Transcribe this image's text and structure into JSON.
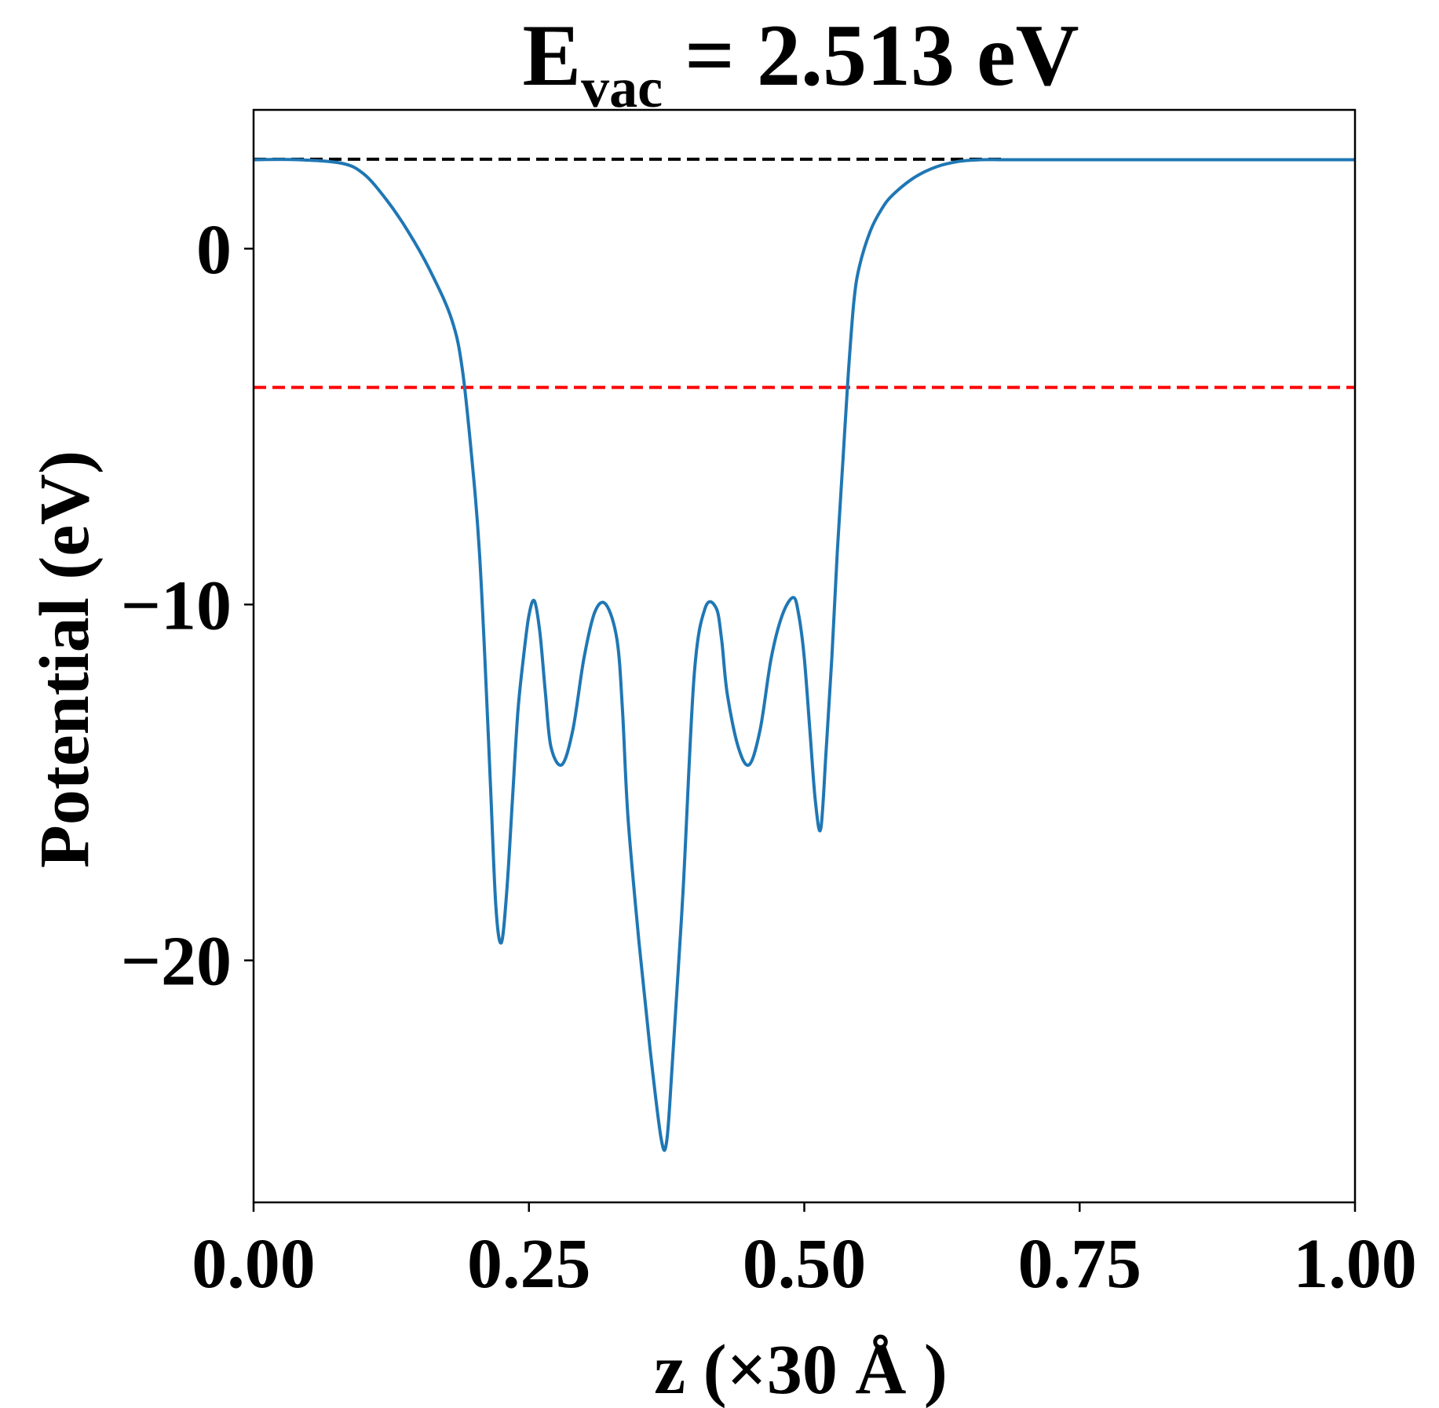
{
  "chart_data": {
    "type": "line",
    "title": {
      "main": "E",
      "subscript": "vac",
      "rest": " = 2.513 eV"
    },
    "xlabel": "z (×30 Å )",
    "ylabel": "Potential (eV)",
    "xlim": [
      0.0,
      1.0
    ],
    "ylim": [
      -26.8,
      3.9
    ],
    "xticks": [
      0.0,
      0.25,
      0.5,
      0.75,
      1.0
    ],
    "xtick_labels": [
      "0.00",
      "0.25",
      "0.50",
      "0.75",
      "1.00"
    ],
    "yticks": [
      0,
      -10,
      -20
    ],
    "ytick_labels": [
      "0",
      "−10",
      "−20"
    ],
    "grid": false,
    "hlines": [
      {
        "y": 2.513,
        "color": "#000000",
        "style": "dashed",
        "x_range": [
          0.0,
          0.68
        ]
      },
      {
        "y": -3.9,
        "color": "#ff0000",
        "style": "dashed",
        "x_range": [
          0.0,
          1.0
        ]
      }
    ],
    "series": [
      {
        "color": "#1f77b4",
        "x": [
          0.0,
          0.04,
          0.08,
          0.1,
          0.12,
          0.14,
          0.16,
          0.18,
          0.19,
          0.2,
          0.205,
          0.21,
          0.215,
          0.22,
          0.225,
          0.23,
          0.235,
          0.24,
          0.245,
          0.25,
          0.255,
          0.26,
          0.265,
          0.27,
          0.28,
          0.29,
          0.3,
          0.31,
          0.32,
          0.33,
          0.335,
          0.34,
          0.35,
          0.36,
          0.37,
          0.375,
          0.38,
          0.39,
          0.4,
          0.41,
          0.42,
          0.425,
          0.43,
          0.44,
          0.45,
          0.46,
          0.47,
          0.48,
          0.49,
          0.495,
          0.5,
          0.505,
          0.51,
          0.515,
          0.52,
          0.525,
          0.53,
          0.535,
          0.54,
          0.545,
          0.55,
          0.56,
          0.57,
          0.58,
          0.6,
          0.62,
          0.64,
          0.66,
          0.68,
          0.7,
          0.75,
          0.8,
          0.85,
          0.9,
          0.95,
          1.0
        ],
        "y": [
          2.5,
          2.5,
          2.4,
          2.1,
          1.4,
          0.5,
          -0.6,
          -2.0,
          -3.5,
          -6.5,
          -8.5,
          -11.5,
          -15.0,
          -18.5,
          -19.5,
          -18.0,
          -15.5,
          -13.0,
          -11.5,
          -10.3,
          -9.9,
          -10.8,
          -12.5,
          -14.0,
          -14.5,
          -13.5,
          -11.5,
          -10.2,
          -10.0,
          -11.0,
          -13.0,
          -16.0,
          -19.5,
          -22.5,
          -25.0,
          -25.1,
          -23.0,
          -18.0,
          -12.0,
          -10.1,
          -10.1,
          -11.0,
          -12.5,
          -14.0,
          -14.5,
          -13.5,
          -11.5,
          -10.3,
          -9.8,
          -10.3,
          -11.5,
          -13.5,
          -15.5,
          -16.3,
          -14.0,
          -11.5,
          -8.5,
          -6.0,
          -3.5,
          -1.5,
          -0.5,
          0.5,
          1.1,
          1.5,
          2.0,
          2.3,
          2.45,
          2.5,
          2.5,
          2.5,
          2.5,
          2.5,
          2.5,
          2.5,
          2.5,
          2.5
        ]
      }
    ]
  }
}
